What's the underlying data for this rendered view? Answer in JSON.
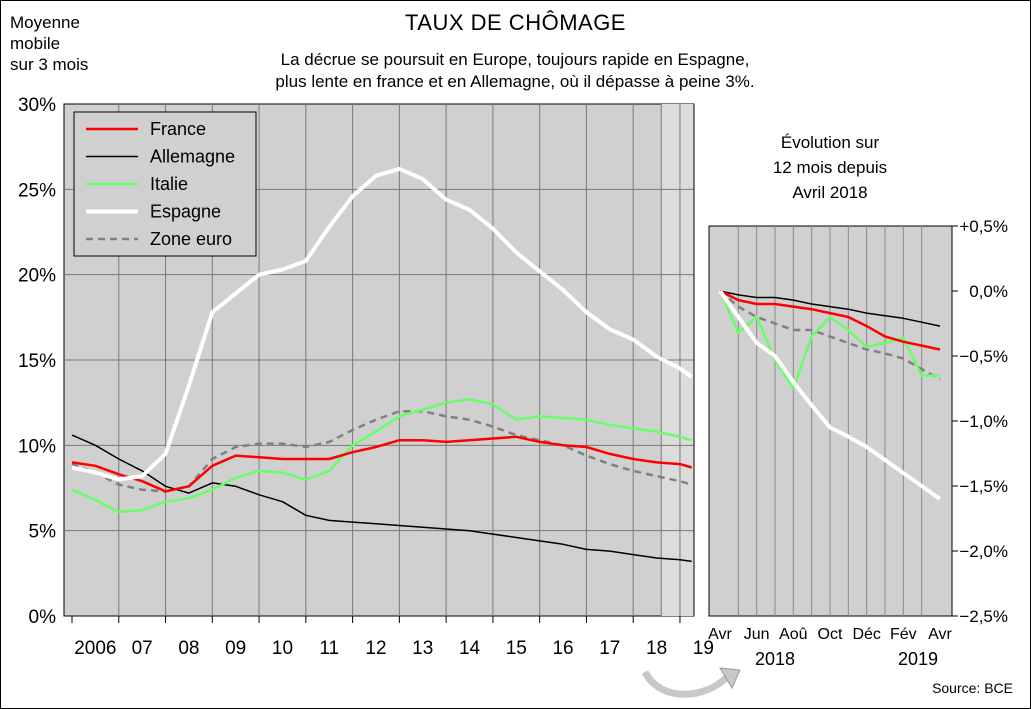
{
  "chart_data": [
    {
      "type": "line",
      "title": "TAUX DE CHÔMAGE",
      "subtitle_lines": [
        "La décrue se poursuit en Europe, toujours rapide en Espagne,",
        "plus lente en france et en Allemagne, où il dépasse à peine 3%."
      ],
      "ylabel": "Moyenne mobile sur 3 mois",
      "unit_note_lines": [
        "Moyenne",
        "mobile",
        "sur 3 mois"
      ],
      "x_start": 2006.0,
      "x_end": 2019.3,
      "x_ticks": [
        "2006",
        "07",
        "08",
        "09",
        "10",
        "11",
        "12",
        "13",
        "14",
        "15",
        "16",
        "17",
        "18",
        "19"
      ],
      "ylim": [
        0,
        30
      ],
      "yticks": [
        "0%",
        "5%",
        "10%",
        "15%",
        "20%",
        "25%",
        "30%"
      ],
      "grid": true,
      "legend": "top-left",
      "series": [
        {
          "name": "France",
          "color": "#ff0000",
          "x": [
            2006.0,
            2006.5,
            2007.0,
            2007.5,
            2008.0,
            2008.5,
            2009.0,
            2009.5,
            2010.0,
            2010.5,
            2011.0,
            2011.5,
            2012.0,
            2012.5,
            2013.0,
            2013.5,
            2014.0,
            2014.5,
            2015.0,
            2015.5,
            2016.0,
            2016.5,
            2017.0,
            2017.5,
            2018.0,
            2018.5,
            2019.0,
            2019.25
          ],
          "values": [
            9.0,
            8.8,
            8.3,
            7.9,
            7.3,
            7.6,
            8.8,
            9.4,
            9.3,
            9.2,
            9.2,
            9.2,
            9.6,
            9.9,
            10.3,
            10.3,
            10.2,
            10.3,
            10.4,
            10.5,
            10.2,
            10.0,
            9.9,
            9.5,
            9.2,
            9.0,
            8.9,
            8.7
          ]
        },
        {
          "name": "Allemagne",
          "color": "#000000",
          "x": [
            2006.0,
            2006.5,
            2007.0,
            2007.5,
            2008.0,
            2008.5,
            2009.0,
            2009.5,
            2010.0,
            2010.5,
            2011.0,
            2011.5,
            2012.0,
            2012.5,
            2013.0,
            2013.5,
            2014.0,
            2014.5,
            2015.0,
            2015.5,
            2016.0,
            2016.5,
            2017.0,
            2017.5,
            2018.0,
            2018.5,
            2019.0,
            2019.25
          ],
          "values": [
            10.6,
            10.0,
            9.2,
            8.5,
            7.6,
            7.2,
            7.8,
            7.6,
            7.1,
            6.7,
            5.9,
            5.6,
            5.5,
            5.4,
            5.3,
            5.2,
            5.1,
            5.0,
            4.8,
            4.6,
            4.4,
            4.2,
            3.9,
            3.8,
            3.6,
            3.4,
            3.3,
            3.2
          ]
        },
        {
          "name": "Italie",
          "color": "#66ff66",
          "x": [
            2006.0,
            2006.5,
            2007.0,
            2007.5,
            2008.0,
            2008.5,
            2009.0,
            2009.5,
            2010.0,
            2010.5,
            2011.0,
            2011.5,
            2012.0,
            2012.5,
            2013.0,
            2013.5,
            2014.0,
            2014.5,
            2015.0,
            2015.5,
            2016.0,
            2016.5,
            2017.0,
            2017.5,
            2018.0,
            2018.5,
            2019.0,
            2019.25
          ],
          "values": [
            7.4,
            6.8,
            6.1,
            6.2,
            6.7,
            6.9,
            7.4,
            8.1,
            8.5,
            8.4,
            8.0,
            8.5,
            10.0,
            10.8,
            11.7,
            12.1,
            12.5,
            12.7,
            12.4,
            11.5,
            11.7,
            11.6,
            11.5,
            11.2,
            11.0,
            10.8,
            10.5,
            10.3
          ]
        },
        {
          "name": "Espagne",
          "color": "#ffffff",
          "x": [
            2006.0,
            2006.5,
            2007.0,
            2007.5,
            2008.0,
            2008.5,
            2009.0,
            2009.5,
            2010.0,
            2010.5,
            2011.0,
            2011.5,
            2012.0,
            2012.5,
            2013.0,
            2013.5,
            2014.0,
            2014.5,
            2015.0,
            2015.5,
            2016.0,
            2016.5,
            2017.0,
            2017.5,
            2018.0,
            2018.5,
            2019.0,
            2019.25
          ],
          "values": [
            8.7,
            8.4,
            8.0,
            8.2,
            9.5,
            13.5,
            17.8,
            18.9,
            20.0,
            20.3,
            20.8,
            22.8,
            24.6,
            25.8,
            26.2,
            25.6,
            24.4,
            23.8,
            22.7,
            21.3,
            20.2,
            19.1,
            17.8,
            16.8,
            16.2,
            15.2,
            14.5,
            14.0
          ]
        },
        {
          "name": "Zone euro",
          "color": "#808080",
          "dashed": true,
          "x": [
            2006.0,
            2006.5,
            2007.0,
            2007.5,
            2008.0,
            2008.5,
            2009.0,
            2009.5,
            2010.0,
            2010.5,
            2011.0,
            2011.5,
            2012.0,
            2012.5,
            2013.0,
            2013.5,
            2014.0,
            2014.5,
            2015.0,
            2015.5,
            2016.0,
            2016.5,
            2017.0,
            2017.5,
            2018.0,
            2018.5,
            2019.0,
            2019.25
          ],
          "values": [
            8.9,
            8.4,
            7.7,
            7.4,
            7.3,
            7.6,
            9.2,
            9.9,
            10.1,
            10.1,
            9.9,
            10.2,
            10.9,
            11.5,
            12.0,
            12.0,
            11.7,
            11.5,
            11.1,
            10.6,
            10.3,
            10.0,
            9.4,
            8.9,
            8.5,
            8.2,
            7.9,
            7.7
          ]
        }
      ]
    },
    {
      "type": "line",
      "title_lines": [
        "Évolution sur",
        "12 mois depuis",
        "Avril 2018"
      ],
      "x_ticks": [
        "Avr",
        "Jun",
        "Aoû",
        "Oct",
        "Déc",
        "Fév",
        "Avr"
      ],
      "x_year_labels": [
        "2018",
        "2019"
      ],
      "ylim": [
        -2.5,
        0.5
      ],
      "yticks": [
        "+0,5%",
        "0,0%",
        "−0,5%",
        "−1,0%",
        "−1,5%",
        "−2,0%",
        "−2,5%"
      ],
      "grid": true,
      "series": [
        {
          "name": "France",
          "color": "#ff0000",
          "values": [
            0.0,
            -0.07,
            -0.1,
            -0.1,
            -0.12,
            -0.14,
            -0.17,
            -0.2,
            -0.27,
            -0.35,
            -0.39,
            -0.42,
            -0.45
          ]
        },
        {
          "name": "Allemagne",
          "color": "#000000",
          "values": [
            0.0,
            -0.03,
            -0.05,
            -0.05,
            -0.07,
            -0.1,
            -0.12,
            -0.14,
            -0.17,
            -0.19,
            -0.21,
            -0.24,
            -0.27
          ]
        },
        {
          "name": "Italie",
          "color": "#66ff66",
          "values": [
            0.0,
            -0.32,
            -0.2,
            -0.53,
            -0.75,
            -0.35,
            -0.2,
            -0.3,
            -0.43,
            -0.4,
            -0.36,
            -0.65,
            -0.65
          ]
        },
        {
          "name": "Espagne",
          "color": "#ffffff",
          "values": [
            0.0,
            -0.2,
            -0.4,
            -0.5,
            -0.7,
            -0.88,
            -1.05,
            -1.12,
            -1.2,
            -1.3,
            -1.4,
            -1.5,
            -1.6
          ]
        },
        {
          "name": "Zone euro",
          "color": "#808080",
          "dashed": true,
          "values": [
            0.0,
            -0.12,
            -0.2,
            -0.25,
            -0.3,
            -0.3,
            -0.35,
            -0.4,
            -0.45,
            -0.48,
            -0.52,
            -0.6,
            -0.68
          ]
        }
      ]
    }
  ],
  "source": "Source: BCE"
}
